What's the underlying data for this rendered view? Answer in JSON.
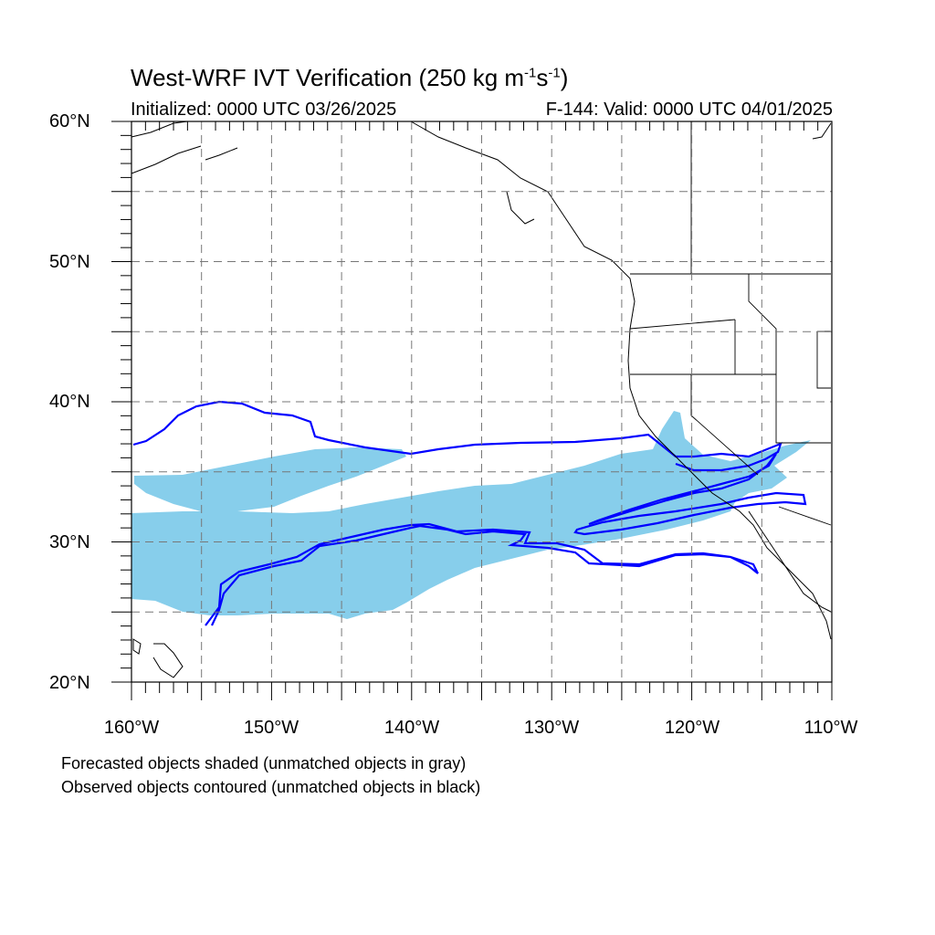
{
  "title": {
    "main": "West-WRF IVT Verification (250 kg m",
    "exp1": "-1",
    "mid": "s",
    "exp2": "-1",
    "end": ")"
  },
  "subtitle_left": "Initialized: 0000 UTC 03/26/2025",
  "subtitle_right": "F-144: Valid: 0000 UTC 04/01/2025",
  "lat_labels": [
    "60°N",
    "50°N",
    "40°N",
    "30°N",
    "20°N"
  ],
  "lon_labels": [
    "160°W",
    "150°W",
    "140°W",
    "130°W",
    "120°W",
    "110°W"
  ],
  "notes": [
    "Forecasted objects shaded (unmatched objects in gray)",
    "Observed objects contoured (unmatched objects in black)"
  ],
  "map": {
    "extent": {
      "lon": [
        -160,
        -110
      ],
      "lat": [
        20,
        60
      ]
    },
    "grid_interval_deg": 5,
    "colors": {
      "forecast_fill": "#87ceeb",
      "observed_contour": "#0000ff",
      "coastline": "#000000",
      "grid": "#777777"
    }
  }
}
